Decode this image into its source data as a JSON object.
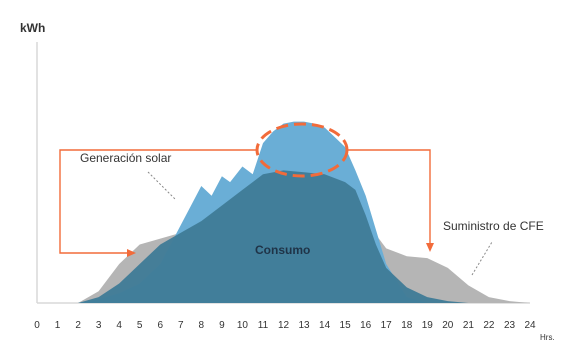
{
  "chart_data": {
    "type": "area",
    "ylabel": "kWh",
    "xlabel": "Hrs.",
    "x_ticks": [
      "0",
      "1",
      "2",
      "3",
      "4",
      "5",
      "6",
      "7",
      "8",
      "9",
      "10",
      "11",
      "12",
      "13",
      "14",
      "15",
      "16",
      "17",
      "18",
      "19",
      "20",
      "21",
      "22",
      "23",
      "24"
    ],
    "xlim": [
      0,
      24
    ],
    "ylim": [
      0,
      100
    ],
    "grid": false,
    "colors": {
      "supply": "#b5b5b5",
      "solar": "#6aaed6",
      "consumption": "#3f7b97",
      "annotation": "#f26b3a"
    },
    "series": [
      {
        "key": "supply",
        "x": [
          0,
          1,
          2,
          3,
          4,
          5,
          6,
          7,
          8,
          9,
          10,
          11,
          12,
          13,
          14,
          15,
          16,
          17,
          18,
          19,
          20,
          21,
          22,
          23,
          24
        ],
        "y": [
          0,
          0,
          0,
          6,
          20,
          30,
          33,
          36,
          40,
          45,
          52,
          60,
          62,
          62,
          61,
          57,
          42,
          28,
          24,
          23,
          18,
          9,
          3,
          1,
          0
        ]
      },
      {
        "key": "solar",
        "x": [
          2,
          3,
          4,
          5,
          6,
          7,
          7.6,
          8,
          8.5,
          9,
          9.4,
          10,
          10.5,
          11,
          11.5,
          12,
          12.5,
          13,
          13.5,
          14,
          14.5,
          15,
          15.5,
          16,
          17,
          18,
          19,
          20
        ],
        "y": [
          0,
          2,
          5,
          10,
          20,
          40,
          52,
          60,
          55,
          65,
          62,
          70,
          66,
          82,
          88,
          92,
          93,
          93,
          92,
          90,
          85,
          80,
          68,
          55,
          20,
          3,
          0,
          0
        ]
      },
      {
        "key": "consumption",
        "x": [
          2,
          3,
          4,
          5,
          6,
          7,
          8,
          9,
          10,
          11,
          12,
          13,
          14,
          15,
          15.5,
          16,
          16.5,
          17,
          18,
          19,
          20,
          21,
          22
        ],
        "y": [
          0,
          3,
          10,
          20,
          30,
          36,
          42,
          50,
          58,
          66,
          68,
          67,
          66,
          62,
          58,
          45,
          30,
          18,
          8,
          3,
          1,
          0,
          0
        ]
      }
    ],
    "annotations": {
      "solar": "Generación solar",
      "consumption": "Consumo",
      "supply": "Suministro de CFE"
    }
  }
}
